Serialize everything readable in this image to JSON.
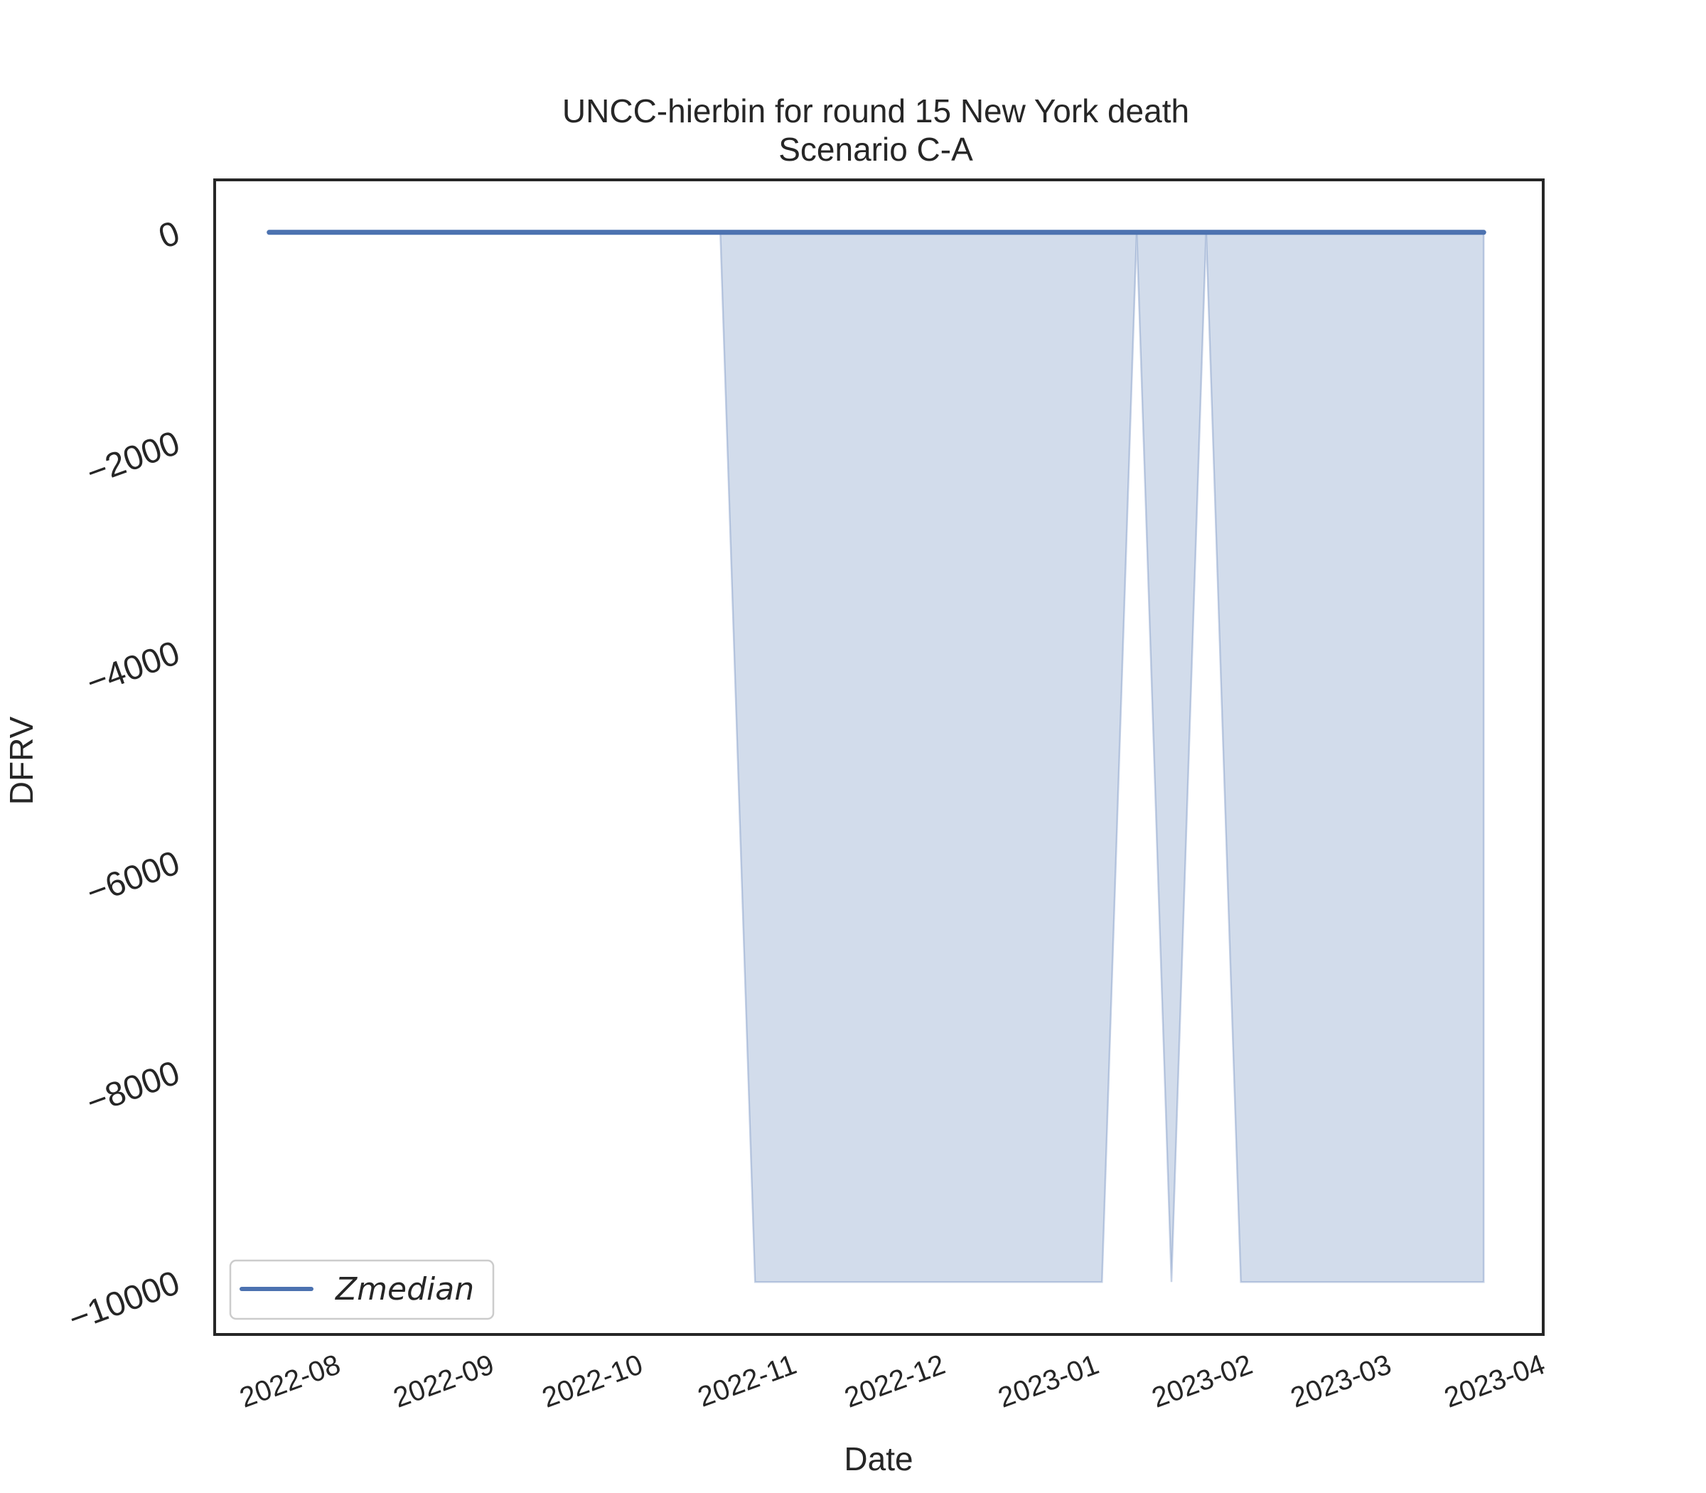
{
  "chart_data": {
    "type": "area",
    "title": "UNCC-hierbin for round 15 New York death",
    "subtitle": "Scenario C-A",
    "xlabel": "Date",
    "ylabel": "DFRV",
    "xlim": [
      "2022-07-12",
      "2023-04-06"
    ],
    "ylim": [
      -10500,
      500
    ],
    "x_ticks": [
      "2022-08",
      "2022-09",
      "2022-10",
      "2022-11",
      "2022-12",
      "2023-01",
      "2023-02",
      "2023-03",
      "2023-04"
    ],
    "y_ticks": [
      0,
      -2000,
      -4000,
      -6000,
      -8000,
      -10000
    ],
    "y_tick_labels": [
      "0",
      "−2000",
      "−4000",
      "−6000",
      "−8000",
      "−10000"
    ],
    "grid": false,
    "legend": {
      "position": "lower-left",
      "entries": [
        "Zmedian"
      ]
    },
    "series": [
      {
        "name": "Zmedian",
        "color": "#4c72b0",
        "x": [
          "2022-07-23",
          "2022-10-22",
          "2023-03-25"
        ],
        "y": [
          0,
          0,
          0
        ]
      }
    ],
    "band": {
      "color": "#4c72b0",
      "opacity": 0.25,
      "x": [
        "2022-10-22",
        "2022-10-29",
        "2023-01-07",
        "2023-01-14",
        "2023-01-21",
        "2023-01-28",
        "2023-02-04",
        "2023-03-25"
      ],
      "lower": [
        0,
        -10000,
        -10000,
        0,
        -10000,
        0,
        -10000,
        -10000
      ],
      "upper": [
        0,
        0,
        0,
        0,
        0,
        0,
        0,
        0
      ]
    }
  }
}
